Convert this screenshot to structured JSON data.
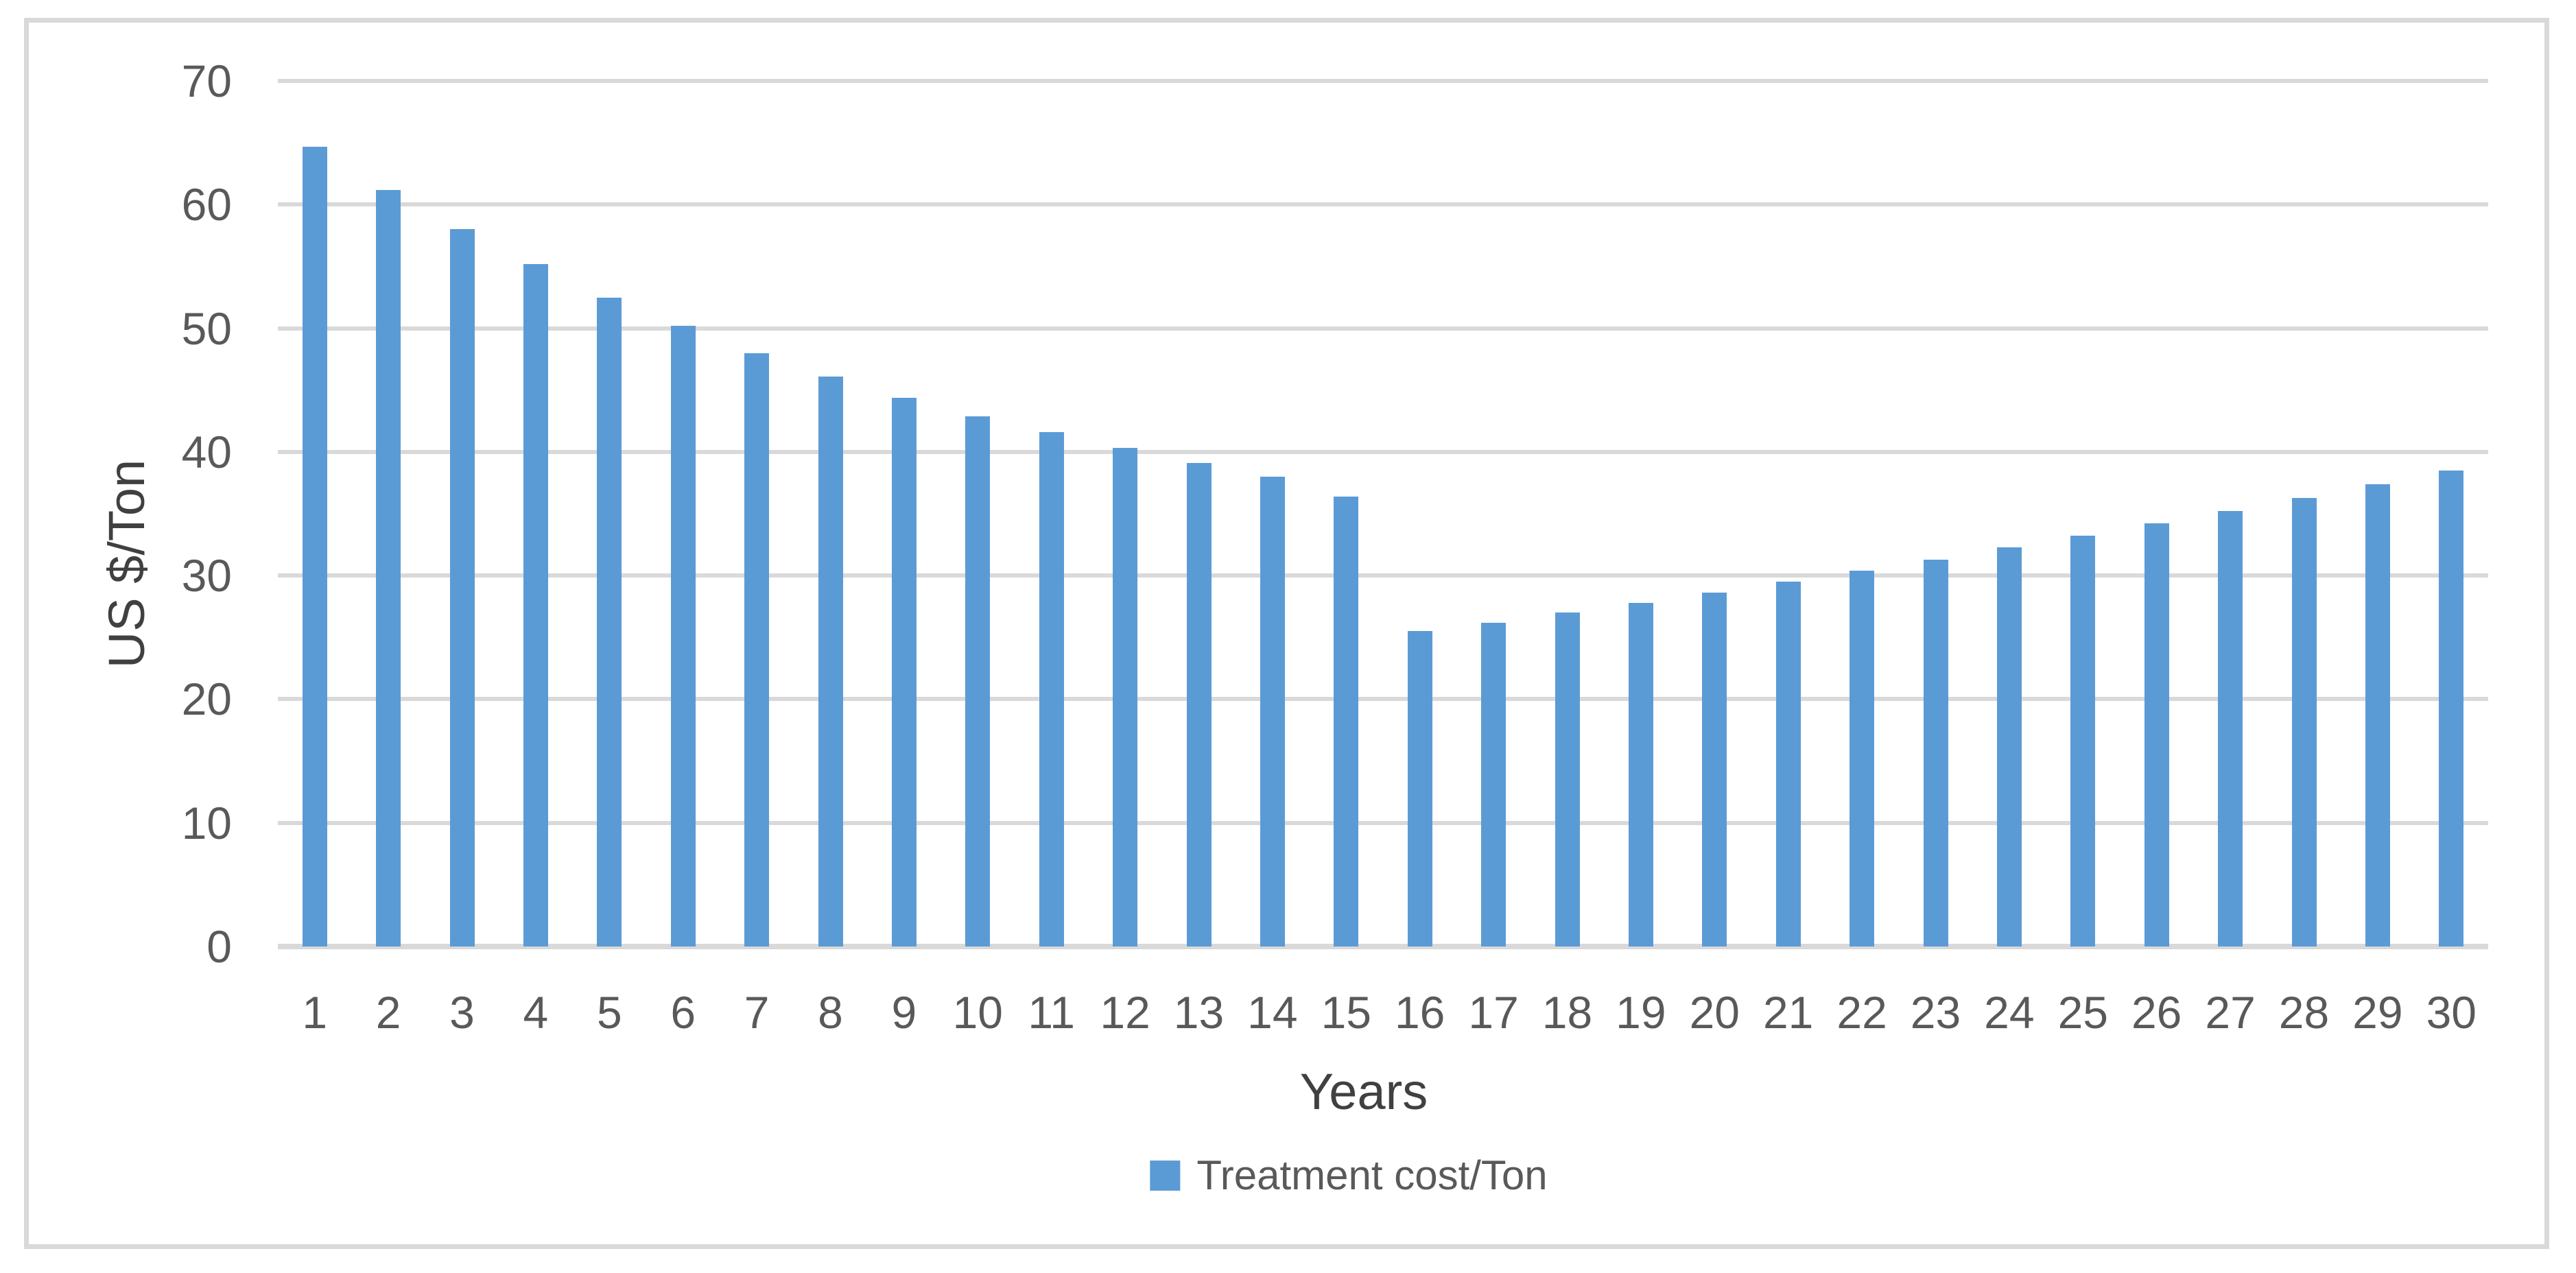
{
  "chart_data": {
    "type": "bar",
    "title": "",
    "xlabel": "Years",
    "ylabel": "US $/Ton",
    "categories": [
      "1",
      "2",
      "3",
      "4",
      "5",
      "6",
      "7",
      "8",
      "9",
      "10",
      "11",
      "12",
      "13",
      "14",
      "15",
      "16",
      "17",
      "18",
      "19",
      "20",
      "21",
      "22",
      "23",
      "24",
      "25",
      "26",
      "27",
      "28",
      "29",
      "30"
    ],
    "series": [
      {
        "name": "Treatment cost/Ton",
        "values": [
          64.7,
          61.2,
          58.0,
          55.2,
          52.5,
          50.2,
          48.0,
          46.1,
          44.4,
          42.9,
          41.6,
          40.3,
          39.1,
          38.0,
          36.4,
          25.5,
          26.2,
          27.0,
          27.8,
          28.6,
          29.5,
          30.4,
          31.3,
          32.3,
          33.2,
          34.2,
          35.2,
          36.3,
          37.4,
          38.5
        ]
      }
    ],
    "ylim": [
      0,
      70
    ],
    "yticks": [
      0,
      10,
      20,
      30,
      40,
      50,
      60,
      70
    ],
    "grid": "horizontal",
    "legend_position": "bottom",
    "colors": {
      "bar": "#5B9BD5",
      "gridline": "#D9D9D9",
      "frame_border": "#D9D9D9",
      "tick_text": "#595959",
      "axis_title_text": "#404040",
      "background": "#FFFFFF"
    }
  }
}
